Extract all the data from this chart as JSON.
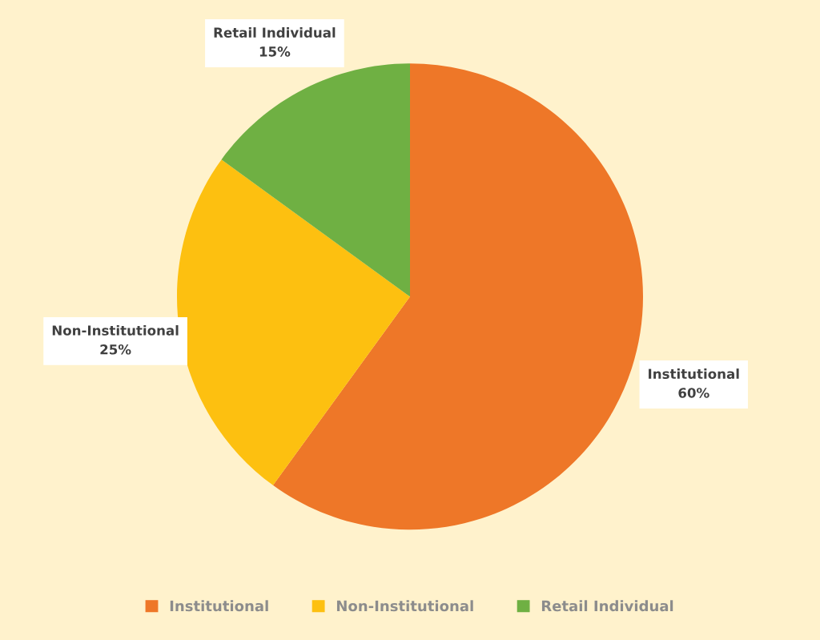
{
  "chart_data": {
    "type": "pie",
    "categories": [
      "Institutional",
      "Non-Institutional",
      "Retail Individual"
    ],
    "values": [
      60,
      25,
      15
    ],
    "colors": [
      "#ee7728",
      "#fdc010",
      "#6fb043"
    ],
    "value_labels": [
      "60%",
      "25%",
      "15%"
    ],
    "legend": "bottom"
  }
}
